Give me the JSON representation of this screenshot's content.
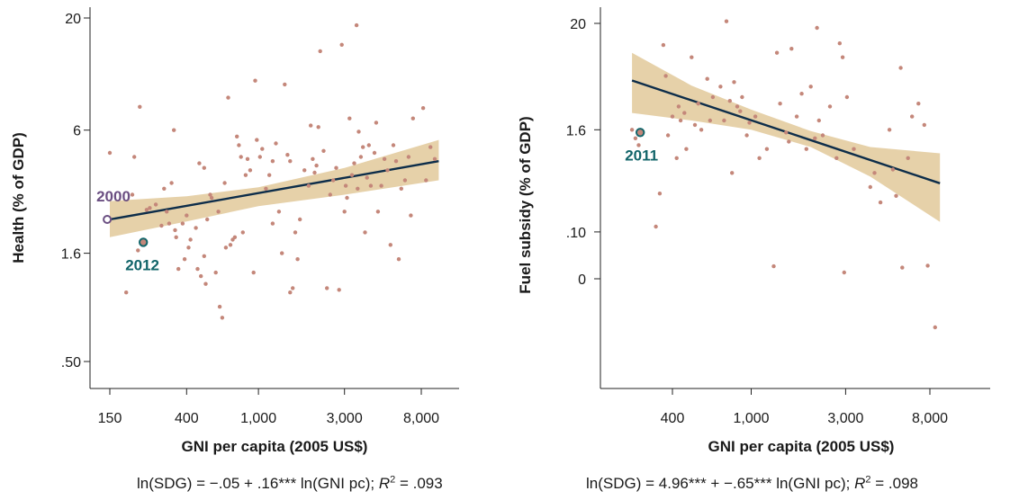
{
  "colors": {
    "point": "#c4877a",
    "band": "#e3cca0",
    "line": "#0d2d4a",
    "highlight_2000": "#6b4f82",
    "highlight_2012": "#12656a"
  },
  "chart_data": [
    {
      "type": "scatter",
      "ylabel": "Health (% of GDP)",
      "xlabel": "GNI per capita (2005 US$)",
      "x_scale": "log",
      "y_scale": "log",
      "xlim": [
        130,
        11000
      ],
      "ylim": [
        0.35,
        25
      ],
      "x_ticks": [
        150,
        400,
        1000,
        3000,
        8000
      ],
      "x_tick_labels": [
        "150",
        "400",
        "1,000",
        "3,000",
        "8,000"
      ],
      "y_ticks": [
        0.5,
        1.6,
        6,
        20
      ],
      "y_tick_labels": [
        ".50",
        "1.6",
        "6",
        "20"
      ],
      "fit": {
        "x": [
          150,
          10000
        ],
        "y": [
          2.3,
          4.3
        ]
      },
      "band": {
        "x": [
          150,
          400,
          1000,
          3000,
          10000
        ],
        "upper": [
          2.8,
          2.95,
          3.25,
          4.0,
          5.4
        ],
        "lower": [
          1.9,
          2.25,
          2.65,
          3.0,
          3.5
        ]
      },
      "annotations": [
        {
          "label": "2000",
          "x": 145,
          "y": 2.3,
          "color_key": "highlight_2000"
        },
        {
          "label": "2012",
          "x": 230,
          "y": 1.8,
          "color_key": "highlight_2012"
        }
      ],
      "equation": {
        "left": "ln(SDG) = −.05 + .16*** ln(GNI pc); ",
        "r": "R",
        "sup": "2",
        "right": " = .093"
      },
      "points": [
        [
          150,
          4.7
        ],
        [
          185,
          1.05
        ],
        [
          200,
          3.0
        ],
        [
          205,
          4.5
        ],
        [
          215,
          1.65
        ],
        [
          220,
          7.7
        ],
        [
          240,
          2.55
        ],
        [
          250,
          2.6
        ],
        [
          270,
          2.7
        ],
        [
          290,
          2.15
        ],
        [
          300,
          3.2
        ],
        [
          310,
          2.5
        ],
        [
          320,
          2.2
        ],
        [
          330,
          3.4
        ],
        [
          340,
          6.0
        ],
        [
          345,
          2.05
        ],
        [
          350,
          1.9
        ],
        [
          360,
          1.35
        ],
        [
          380,
          2.2
        ],
        [
          390,
          1.5
        ],
        [
          400,
          2.4
        ],
        [
          410,
          1.7
        ],
        [
          420,
          1.85
        ],
        [
          450,
          2.1
        ],
        [
          460,
          1.35
        ],
        [
          470,
          4.2
        ],
        [
          480,
          1.25
        ],
        [
          500,
          4.0
        ],
        [
          500,
          1.55
        ],
        [
          510,
          1.15
        ],
        [
          520,
          2.3
        ],
        [
          540,
          3.0
        ],
        [
          550,
          2.9
        ],
        [
          580,
          1.3
        ],
        [
          600,
          2.5
        ],
        [
          610,
          0.9
        ],
        [
          630,
          0.8
        ],
        [
          650,
          3.4
        ],
        [
          660,
          1.7
        ],
        [
          680,
          8.5
        ],
        [
          700,
          1.75
        ],
        [
          720,
          1.85
        ],
        [
          740,
          1.9
        ],
        [
          760,
          5.6
        ],
        [
          780,
          5.1
        ],
        [
          800,
          4.5
        ],
        [
          820,
          2.0
        ],
        [
          850,
          3.7
        ],
        [
          870,
          4.4
        ],
        [
          900,
          3.9
        ],
        [
          940,
          1.3
        ],
        [
          960,
          10.2
        ],
        [
          980,
          5.4
        ],
        [
          1020,
          4.5
        ],
        [
          1050,
          4.9
        ],
        [
          1100,
          3.2
        ],
        [
          1150,
          3.7
        ],
        [
          1200,
          4.3
        ],
        [
          1200,
          2.2
        ],
        [
          1250,
          5.2
        ],
        [
          1300,
          2.5
        ],
        [
          1350,
          1.6
        ],
        [
          1400,
          9.8
        ],
        [
          1450,
          4.6
        ],
        [
          1500,
          4.3
        ],
        [
          1500,
          1.05
        ],
        [
          1550,
          1.1
        ],
        [
          1600,
          2.0
        ],
        [
          1650,
          1.5
        ],
        [
          1700,
          2.3
        ],
        [
          1800,
          3.9
        ],
        [
          1900,
          3.3
        ],
        [
          1950,
          6.3
        ],
        [
          2000,
          4.4
        ],
        [
          2050,
          3.8
        ],
        [
          2100,
          4.1
        ],
        [
          2150,
          6.2
        ],
        [
          2200,
          14.0
        ],
        [
          2300,
          4.8
        ],
        [
          2400,
          1.1
        ],
        [
          2500,
          3.0
        ],
        [
          2600,
          3.5
        ],
        [
          2700,
          4.0
        ],
        [
          2800,
          1.08
        ],
        [
          2900,
          15.0
        ],
        [
          3000,
          2.5
        ],
        [
          3050,
          3.3
        ],
        [
          3100,
          2.9
        ],
        [
          3200,
          6.8
        ],
        [
          3300,
          3.7
        ],
        [
          3400,
          4.2
        ],
        [
          3500,
          18.5
        ],
        [
          3550,
          3.2
        ],
        [
          3600,
          5.9
        ],
        [
          3700,
          4.5
        ],
        [
          3800,
          5.0
        ],
        [
          3900,
          2.0
        ],
        [
          4000,
          3.6
        ],
        [
          4100,
          5.1
        ],
        [
          4200,
          3.3
        ],
        [
          4400,
          4.7
        ],
        [
          4500,
          6.5
        ],
        [
          4600,
          2.5
        ],
        [
          4800,
          3.3
        ],
        [
          5000,
          4.4
        ],
        [
          5200,
          3.9
        ],
        [
          5400,
          1.75
        ],
        [
          5600,
          5.1
        ],
        [
          5800,
          4.3
        ],
        [
          6000,
          1.5
        ],
        [
          6200,
          3.2
        ],
        [
          6500,
          3.5
        ],
        [
          6800,
          4.5
        ],
        [
          7000,
          2.4
        ],
        [
          7200,
          6.8
        ],
        [
          8200,
          7.6
        ],
        [
          8500,
          3.5
        ],
        [
          9000,
          5.0
        ],
        [
          9500,
          4.4
        ]
      ]
    },
    {
      "type": "scatter",
      "ylabel": "Fuel subsidy (% of GDP)",
      "xlabel": "GNI per capita (2005 US$)",
      "x_scale": "log",
      "y_scale": "log1p",
      "xlim": [
        200,
        11000
      ],
      "ylim": [
        -0.04,
        30
      ],
      "x_ticks": [
        400,
        1000,
        3000,
        8000
      ],
      "x_tick_labels": [
        "400",
        "1,000",
        "3,000",
        "8,000"
      ],
      "y_ticks": [
        0,
        0.1,
        1.6,
        20
      ],
      "y_tick_labels": [
        "0",
        ".10",
        "1.6",
        "20"
      ],
      "fit": {
        "x": [
          250,
          9000
        ],
        "y": [
          5.2,
          0.42
        ]
      },
      "band": {
        "x": [
          250,
          500,
          1000,
          2000,
          4000,
          9000
        ],
        "upper": [
          10.0,
          4.6,
          2.6,
          1.55,
          1.05,
          0.9
        ],
        "lower": [
          2.4,
          2.0,
          1.6,
          1.05,
          0.5,
          0.14
        ]
      },
      "annotations": [
        {
          "label": "2011",
          "x": 275,
          "y": 1.5,
          "color_key": "highlight_2011"
        }
      ],
      "equation": {
        "left": "ln(SDG) = 4.96*** + −.65*** ln(GNI pc); ",
        "r": "R",
        "sup": "2",
        "right": " = .098"
      },
      "points": [
        [
          250,
          1.6
        ],
        [
          260,
          1.3
        ],
        [
          270,
          1.1
        ],
        [
          330,
          0.12
        ],
        [
          345,
          0.32
        ],
        [
          360,
          12.0
        ],
        [
          370,
          5.8
        ],
        [
          380,
          1.4
        ],
        [
          400,
          2.2
        ],
        [
          420,
          0.8
        ],
        [
          430,
          2.8
        ],
        [
          440,
          2.0
        ],
        [
          460,
          2.4
        ],
        [
          470,
          1.0
        ],
        [
          500,
          9.0
        ],
        [
          520,
          1.8
        ],
        [
          540,
          3.0
        ],
        [
          560,
          1.6
        ],
        [
          600,
          5.4
        ],
        [
          620,
          2.0
        ],
        [
          640,
          3.5
        ],
        [
          700,
          4.5
        ],
        [
          730,
          2.0
        ],
        [
          750,
          21.0
        ],
        [
          780,
          3.2
        ],
        [
          800,
          0.55
        ],
        [
          820,
          5.0
        ],
        [
          850,
          2.8
        ],
        [
          880,
          2.5
        ],
        [
          900,
          3.5
        ],
        [
          950,
          1.4
        ],
        [
          980,
          1.9
        ],
        [
          1050,
          2.2
        ],
        [
          1100,
          0.8
        ],
        [
          1200,
          1.0
        ],
        [
          1300,
          0.017
        ],
        [
          1350,
          10.0
        ],
        [
          1400,
          3.0
        ],
        [
          1500,
          1.5
        ],
        [
          1550,
          1.2
        ],
        [
          1600,
          11.0
        ],
        [
          1700,
          2.2
        ],
        [
          1800,
          3.8
        ],
        [
          1900,
          1.0
        ],
        [
          2000,
          4.5
        ],
        [
          2100,
          1.3
        ],
        [
          2150,
          18.0
        ],
        [
          2200,
          2.0
        ],
        [
          2300,
          1.4
        ],
        [
          2500,
          2.8
        ],
        [
          2700,
          0.8
        ],
        [
          2800,
          12.5
        ],
        [
          2900,
          9.0
        ],
        [
          2950,
          0.008
        ],
        [
          3050,
          3.5
        ],
        [
          3300,
          1.0
        ],
        [
          4000,
          0.38
        ],
        [
          4200,
          0.55
        ],
        [
          4500,
          0.25
        ],
        [
          5000,
          1.6
        ],
        [
          5200,
          0.6
        ],
        [
          5400,
          0.3
        ],
        [
          5700,
          7.0
        ],
        [
          5800,
          0.015
        ],
        [
          6200,
          0.8
        ],
        [
          6500,
          2.2
        ],
        [
          7000,
          3.0
        ],
        [
          7500,
          1.8
        ],
        [
          7800,
          0.018
        ],
        [
          8500,
          -0.034
        ]
      ]
    }
  ]
}
